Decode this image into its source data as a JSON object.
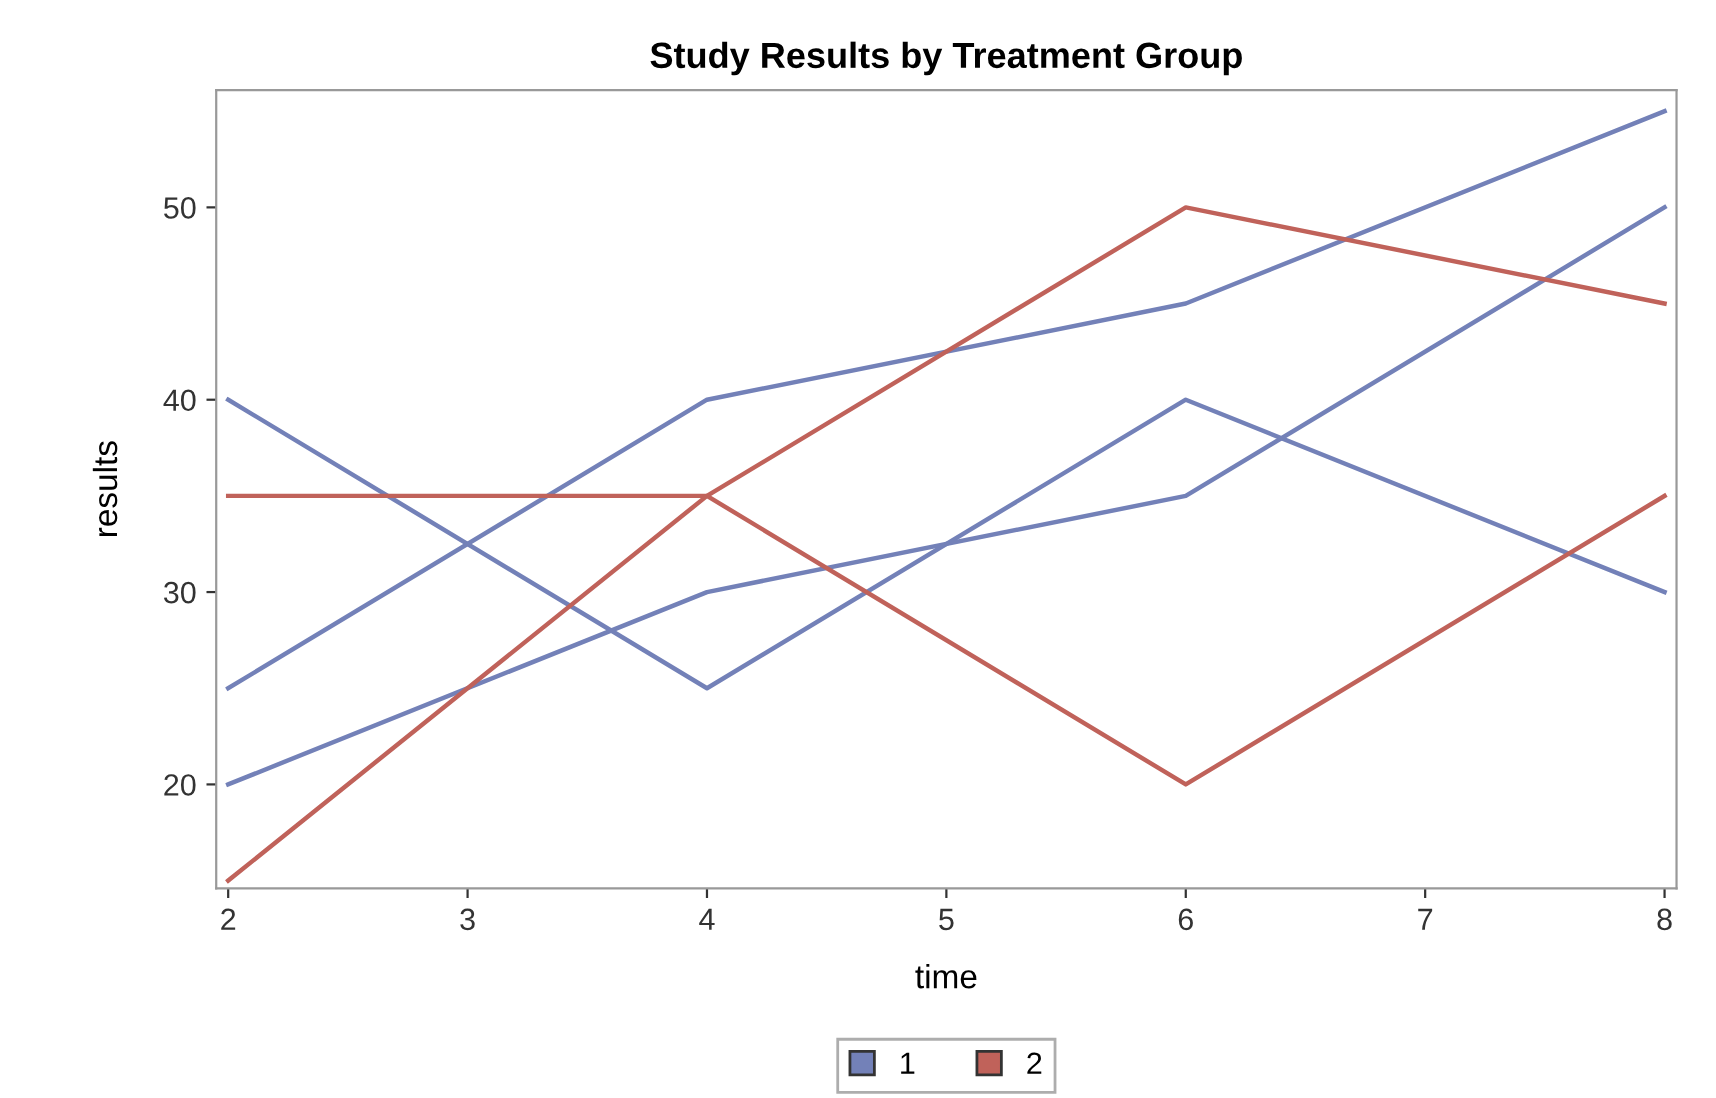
{
  "chart_data": {
    "type": "line",
    "title": "Study Results by Treatment Group",
    "xlabel": "time",
    "ylabel": "results",
    "x": [
      2,
      4,
      6,
      8
    ],
    "series": [
      {
        "name": "1",
        "color": "#7381b8",
        "values": [
          40,
          25,
          40,
          30
        ]
      },
      {
        "color": "#7381b8",
        "values": [
          25,
          40,
          45,
          55
        ]
      },
      {
        "color": "#7381b8",
        "values": [
          20,
          30,
          35,
          50
        ]
      },
      {
        "name": "2",
        "color": "#c0625a",
        "values": [
          35,
          35,
          20,
          35
        ]
      },
      {
        "color": "#c0625a",
        "values": [
          15,
          35,
          50,
          45
        ]
      }
    ],
    "xlim": [
      1.95,
      8.05
    ],
    "ylim": [
      14.6,
      56.1
    ],
    "xticks": [
      2,
      3,
      4,
      5,
      6,
      7,
      8
    ],
    "yticks": [
      20,
      30,
      40,
      50
    ],
    "legend": "bottom",
    "grid": false,
    "marker": "none",
    "line_style": "solid"
  }
}
